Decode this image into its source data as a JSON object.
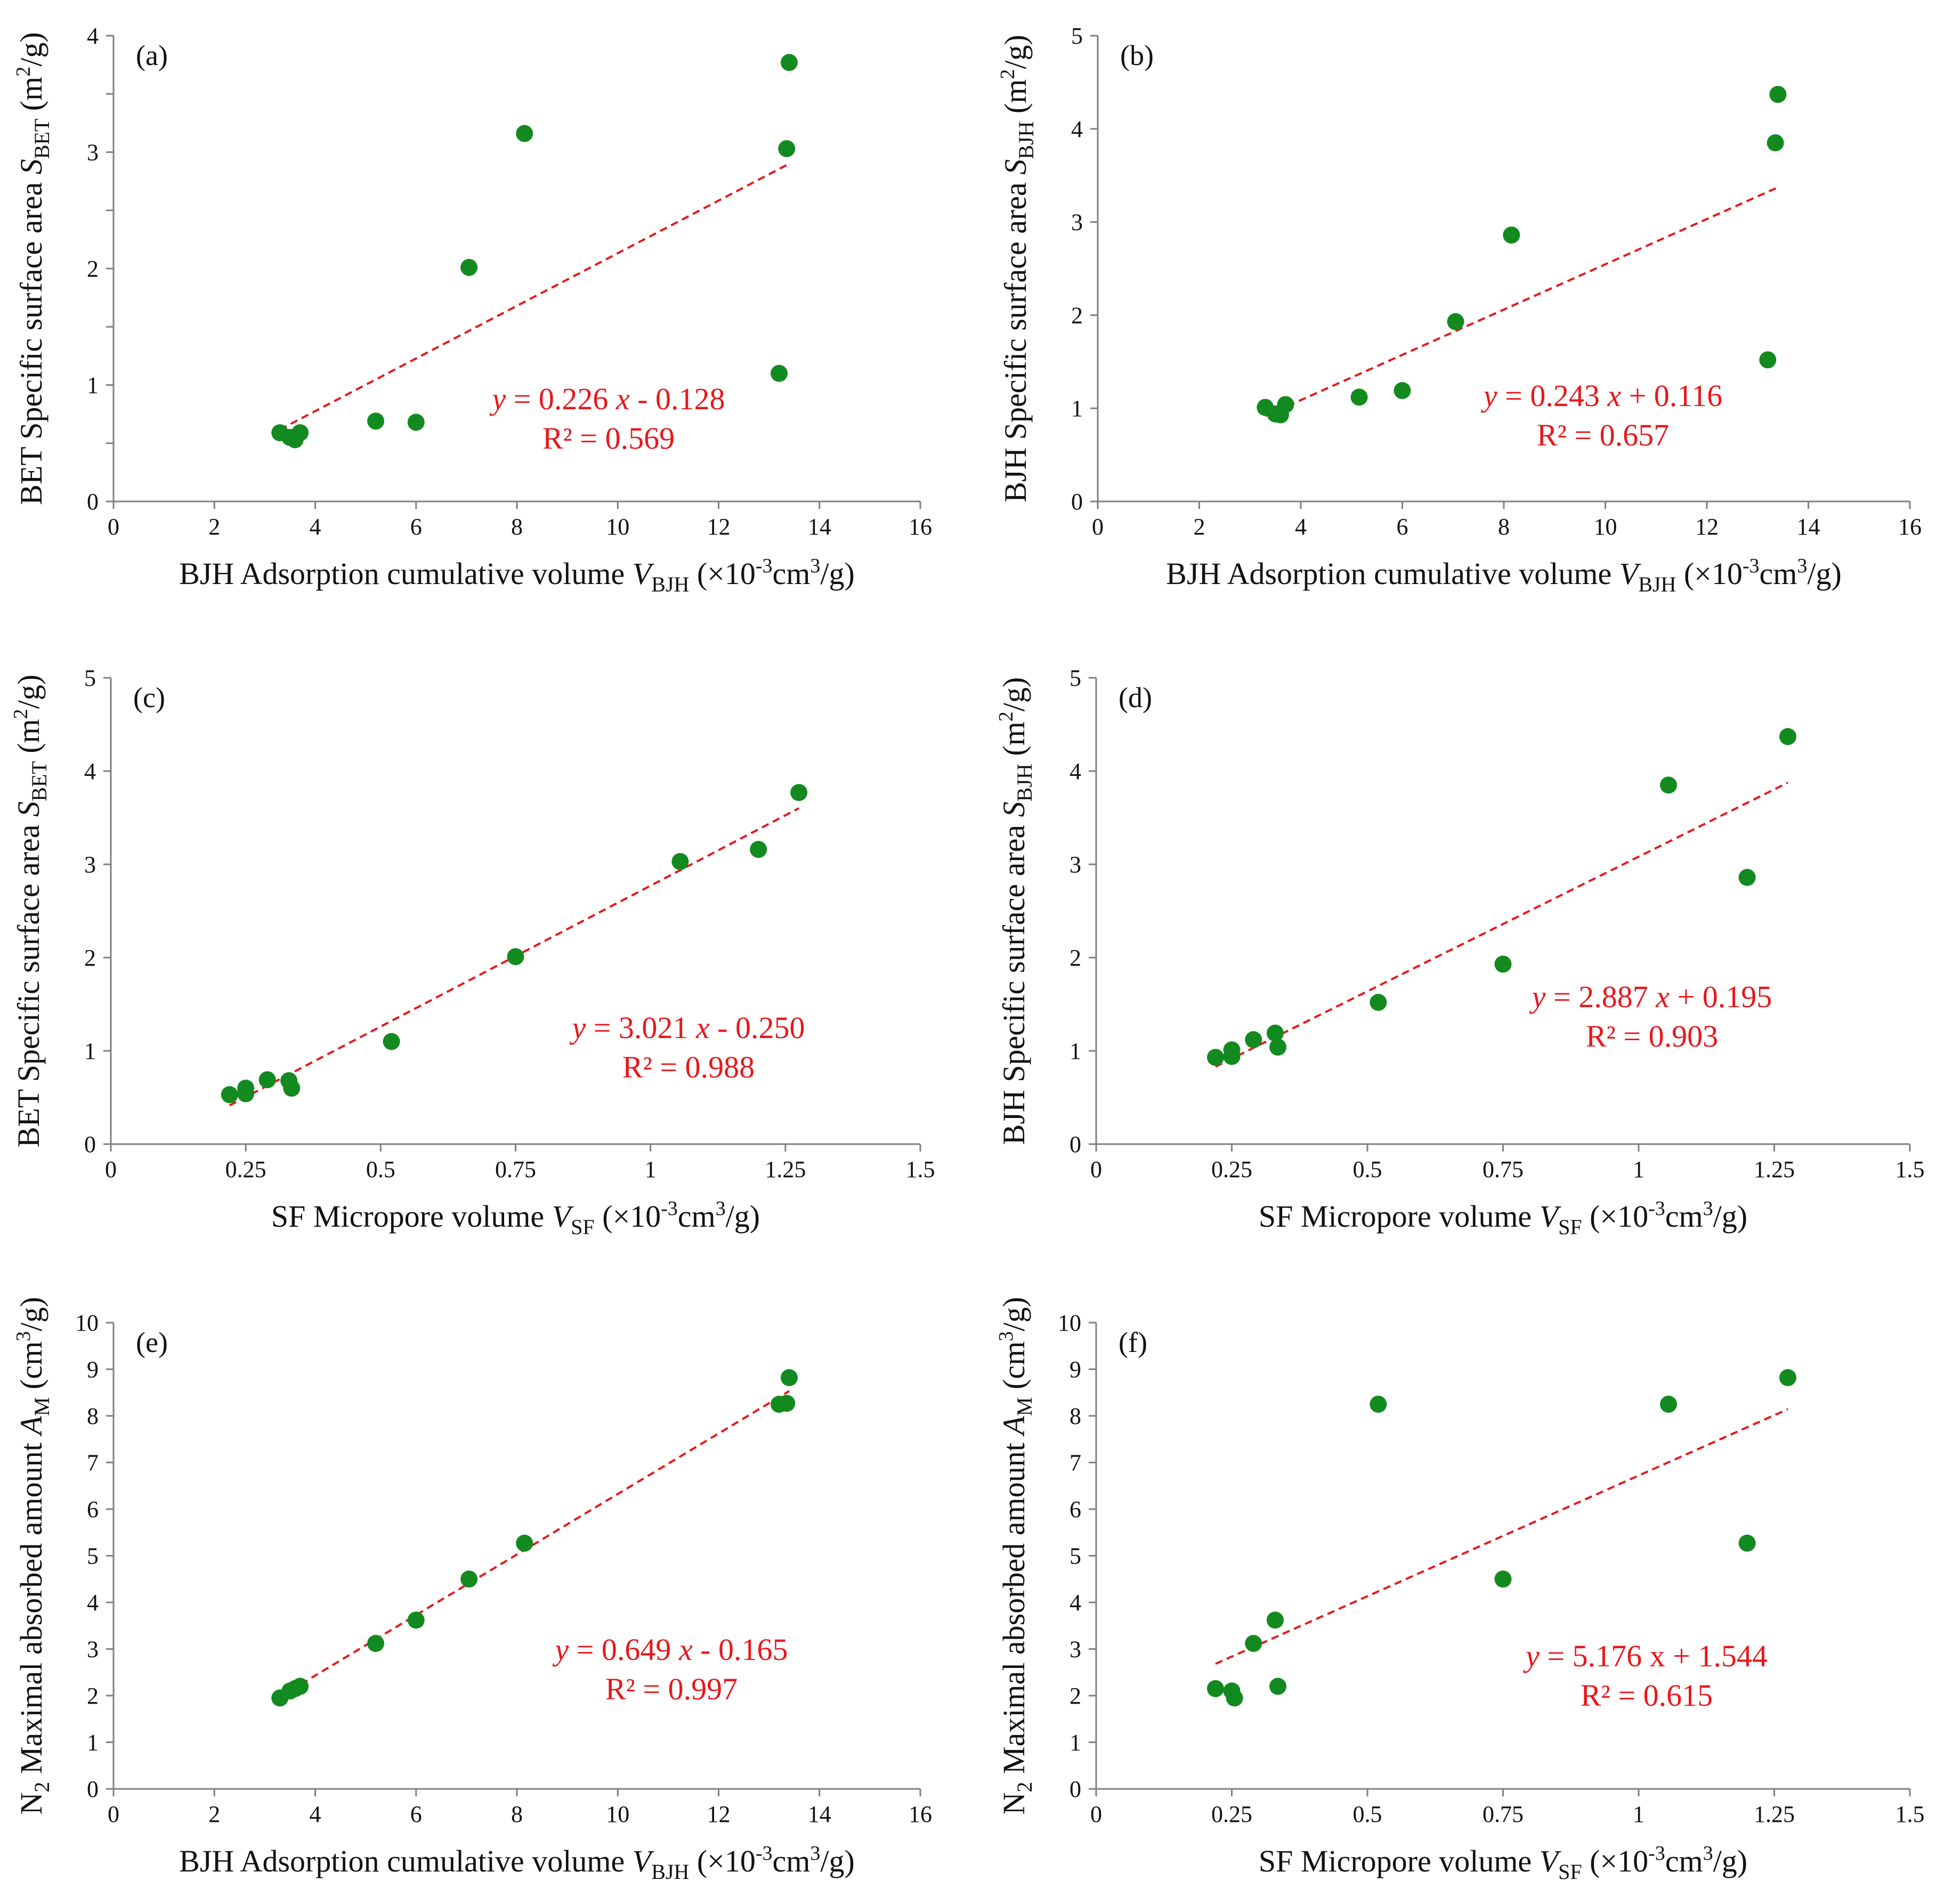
{
  "chart_data": [
    {
      "id": "a",
      "type": "scatter",
      "panel_label": "(a)",
      "xlabel": {
        "main": "BJH Adsorption cumulative volume ",
        "var": "V",
        "sub": "BJH",
        "unit": "  (×10",
        "unit_exp": "-3",
        "unit_mid": "cm",
        "unit_exp2": "3",
        "unit_end": "/g)"
      },
      "ylabel": {
        "main": "BET Specific  surface area ",
        "var": "S",
        "sub": "BET",
        "unit": " (m",
        "unit_exp": "2",
        "unit_end": "/g)"
      },
      "xlim": [
        0,
        16
      ],
      "ylim": [
        0,
        4
      ],
      "xticks": [
        "0",
        "2",
        "4",
        "6",
        "8",
        "10",
        "12",
        "14",
        "16"
      ],
      "yticks": [
        "0",
        "1",
        "2",
        "3",
        "4"
      ],
      "minor_y_step": 0.5,
      "points": [
        [
          3.3,
          0.59
        ],
        [
          3.5,
          0.55
        ],
        [
          3.6,
          0.53
        ],
        [
          3.7,
          0.59
        ],
        [
          5.2,
          0.69
        ],
        [
          6.0,
          0.68
        ],
        [
          7.05,
          2.01
        ],
        [
          8.15,
          3.16
        ],
        [
          13.2,
          1.1
        ],
        [
          13.35,
          3.03
        ],
        [
          13.4,
          3.77
        ]
      ],
      "fit": {
        "slope": 0.226,
        "intercept": -0.128,
        "x_range": [
          3.3,
          13.4
        ]
      },
      "equation": {
        "y": "y",
        "rest": " = 0.226 ",
        "x": "x",
        "tail": " - 0.128",
        "r2": "R² = 0.569"
      }
    },
    {
      "id": "b",
      "type": "scatter",
      "panel_label": "(b)",
      "xlabel": {
        "main": "BJH Adsorption cumulative volume ",
        "var": "V",
        "sub": "BJH",
        "unit": "  (×10",
        "unit_exp": "-3",
        "unit_mid": "cm",
        "unit_exp2": "3",
        "unit_end": "/g)"
      },
      "ylabel": {
        "main": "BJH Specific  surface area ",
        "var": "S",
        "sub": "BJH",
        "unit": " (m",
        "unit_exp": "2",
        "unit_end": "/g)"
      },
      "xlim": [
        0,
        16
      ],
      "ylim": [
        0,
        5
      ],
      "xticks": [
        "0",
        "2",
        "4",
        "6",
        "8",
        "10",
        "12",
        "14",
        "16"
      ],
      "yticks": [
        "0",
        "1",
        "2",
        "3",
        "4",
        "5"
      ],
      "minor_y_step": null,
      "points": [
        [
          3.3,
          1.01
        ],
        [
          3.5,
          0.94
        ],
        [
          3.6,
          0.93
        ],
        [
          3.7,
          1.04
        ],
        [
          5.15,
          1.12
        ],
        [
          6.0,
          1.19
        ],
        [
          7.05,
          1.93
        ],
        [
          8.15,
          2.86
        ],
        [
          13.2,
          1.52
        ],
        [
          13.35,
          3.85
        ],
        [
          13.4,
          4.37
        ]
      ],
      "fit": {
        "slope": 0.243,
        "intercept": 0.116,
        "x_range": [
          3.3,
          13.4
        ]
      },
      "equation": {
        "y": "y",
        "rest": " = 0.243 ",
        "x": "x",
        "tail": " + 0.116",
        "r2": "R² = 0.657"
      }
    },
    {
      "id": "c",
      "type": "scatter",
      "panel_label": "(c)",
      "xlabel": {
        "main": "SF Micropore volume ",
        "var": "V",
        "sub": "SF",
        "unit": "  (×10",
        "unit_exp": "-3",
        "unit_mid": "cm",
        "unit_exp2": "3",
        "unit_end": "/g)"
      },
      "ylabel": {
        "main": "BET Specific  surface area ",
        "var": "S",
        "sub": "BET",
        "unit": " (m",
        "unit_exp": "2",
        "unit_end": "/g)"
      },
      "xlim": [
        0,
        1.5
      ],
      "ylim": [
        0,
        5
      ],
      "xticks": [
        "0",
        "0.25",
        "0.5",
        "0.75",
        "1",
        "1.25",
        "1.5"
      ],
      "yticks": [
        "0",
        "1",
        "2",
        "3",
        "4",
        "5"
      ],
      "minor_y_step": null,
      "points": [
        [
          0.22,
          0.53
        ],
        [
          0.25,
          0.54
        ],
        [
          0.25,
          0.6
        ],
        [
          0.29,
          0.69
        ],
        [
          0.33,
          0.68
        ],
        [
          0.335,
          0.6
        ],
        [
          0.52,
          1.1
        ],
        [
          0.75,
          2.01
        ],
        [
          1.055,
          3.03
        ],
        [
          1.2,
          3.16
        ],
        [
          1.275,
          3.77
        ]
      ],
      "fit": {
        "slope": 3.021,
        "intercept": -0.25,
        "x_range": [
          0.22,
          1.275
        ]
      },
      "equation": {
        "y": "y",
        "rest": " = 3.021 ",
        "x": "x",
        "tail": " - 0.250",
        "r2": "R² = 0.988"
      }
    },
    {
      "id": "d",
      "type": "scatter",
      "panel_label": "(d)",
      "xlabel": {
        "main": "SF Micropore volume ",
        "var": "V",
        "sub": "SF",
        "unit": "  (×10",
        "unit_exp": "-3",
        "unit_mid": "cm",
        "unit_exp2": "3",
        "unit_end": "/g)"
      },
      "ylabel": {
        "main": "BJH Specific  surface area ",
        "var": "S",
        "sub": "BJH",
        "unit": " (m",
        "unit_exp": "2",
        "unit_end": "/g)"
      },
      "xlim": [
        0,
        1.5
      ],
      "ylim": [
        0,
        5
      ],
      "xticks": [
        "0",
        "0.25",
        "0.5",
        "0.75",
        "1",
        "1.25",
        "1.5"
      ],
      "yticks": [
        "0",
        "1",
        "2",
        "3",
        "4",
        "5"
      ],
      "minor_y_step": null,
      "points": [
        [
          0.22,
          0.93
        ],
        [
          0.25,
          0.94
        ],
        [
          0.25,
          1.01
        ],
        [
          0.29,
          1.12
        ],
        [
          0.33,
          1.19
        ],
        [
          0.335,
          1.04
        ],
        [
          0.52,
          1.52
        ],
        [
          0.75,
          1.93
        ],
        [
          1.055,
          3.85
        ],
        [
          1.2,
          2.86
        ],
        [
          1.275,
          4.37
        ]
      ],
      "fit": {
        "slope": 2.887,
        "intercept": 0.195,
        "x_range": [
          0.22,
          1.275
        ]
      },
      "equation": {
        "y": "y",
        "rest": " = 2.887 ",
        "x": "x",
        "tail": " + 0.195",
        "r2": "R² = 0.903"
      }
    },
    {
      "id": "e",
      "type": "scatter",
      "panel_label": "(e)",
      "xlabel": {
        "main": "BJH Adsorption cumulative volume ",
        "var": "V",
        "sub": "BJH",
        "unit": "  (×10",
        "unit_exp": "-3",
        "unit_mid": "cm",
        "unit_exp2": "3",
        "unit_end": "/g)"
      },
      "ylabel": {
        "pre": "N",
        "pre_sub": "2",
        "main": " Maximal absorbed amount ",
        "var": "A",
        "sub": "M",
        "unit": " (cm",
        "unit_exp": "3",
        "unit_end": "/g)"
      },
      "xlim": [
        0,
        16
      ],
      "ylim": [
        0,
        10
      ],
      "xticks": [
        "0",
        "2",
        "4",
        "6",
        "8",
        "10",
        "12",
        "14",
        "16"
      ],
      "yticks": [
        "0",
        "1",
        "2",
        "3",
        "4",
        "5",
        "6",
        "7",
        "8",
        "9",
        "10"
      ],
      "minor_y_step": null,
      "points": [
        [
          3.3,
          1.95
        ],
        [
          3.5,
          2.1
        ],
        [
          3.6,
          2.15
        ],
        [
          3.7,
          2.2
        ],
        [
          5.2,
          3.12
        ],
        [
          6.0,
          3.62
        ],
        [
          7.05,
          4.5
        ],
        [
          8.15,
          5.27
        ],
        [
          13.2,
          8.25
        ],
        [
          13.35,
          8.27
        ],
        [
          13.4,
          8.82
        ]
      ],
      "fit": {
        "slope": 0.649,
        "intercept": -0.165,
        "x_range": [
          3.3,
          13.4
        ]
      },
      "equation": {
        "y": "y",
        "rest": " = 0.649 ",
        "x": "x",
        "tail": " - 0.165",
        "r2": "R² = 0.997"
      }
    },
    {
      "id": "f",
      "type": "scatter",
      "panel_label": "(f)",
      "xlabel": {
        "main": "SF Micropore volume ",
        "var": "V",
        "sub": "SF",
        "unit": "  (×10",
        "unit_exp": "-3",
        "unit_mid": "cm",
        "unit_exp2": "3",
        "unit_end": "/g)"
      },
      "ylabel": {
        "pre": "N",
        "pre_sub": "2",
        "main": " Maximal absorbed amount ",
        "var": "A",
        "sub": "M",
        "unit": " (cm",
        "unit_exp": "3",
        "unit_end": "/g)"
      },
      "xlim": [
        0,
        1.5
      ],
      "ylim": [
        0,
        10
      ],
      "xticks": [
        "0",
        "0.25",
        "0.5",
        "0.75",
        "1",
        "1.25",
        "1.5"
      ],
      "yticks": [
        "0",
        "1",
        "2",
        "3",
        "4",
        "5",
        "6",
        "7",
        "8",
        "9",
        "10"
      ],
      "minor_y_step": null,
      "points": [
        [
          0.22,
          2.15
        ],
        [
          0.25,
          2.1
        ],
        [
          0.255,
          1.95
        ],
        [
          0.29,
          3.12
        ],
        [
          0.33,
          3.62
        ],
        [
          0.335,
          2.2
        ],
        [
          0.52,
          8.25
        ],
        [
          0.75,
          4.5
        ],
        [
          1.055,
          8.25
        ],
        [
          1.2,
          5.27
        ],
        [
          1.275,
          8.82
        ]
      ],
      "fit": {
        "slope": 5.176,
        "intercept": 1.544,
        "x_range": [
          0.22,
          1.275
        ]
      },
      "equation": {
        "y": "y",
        "rest": " = 5.176 x + 1.544",
        "x": "",
        "tail": "",
        "r2": "R² = 0.615"
      }
    }
  ]
}
